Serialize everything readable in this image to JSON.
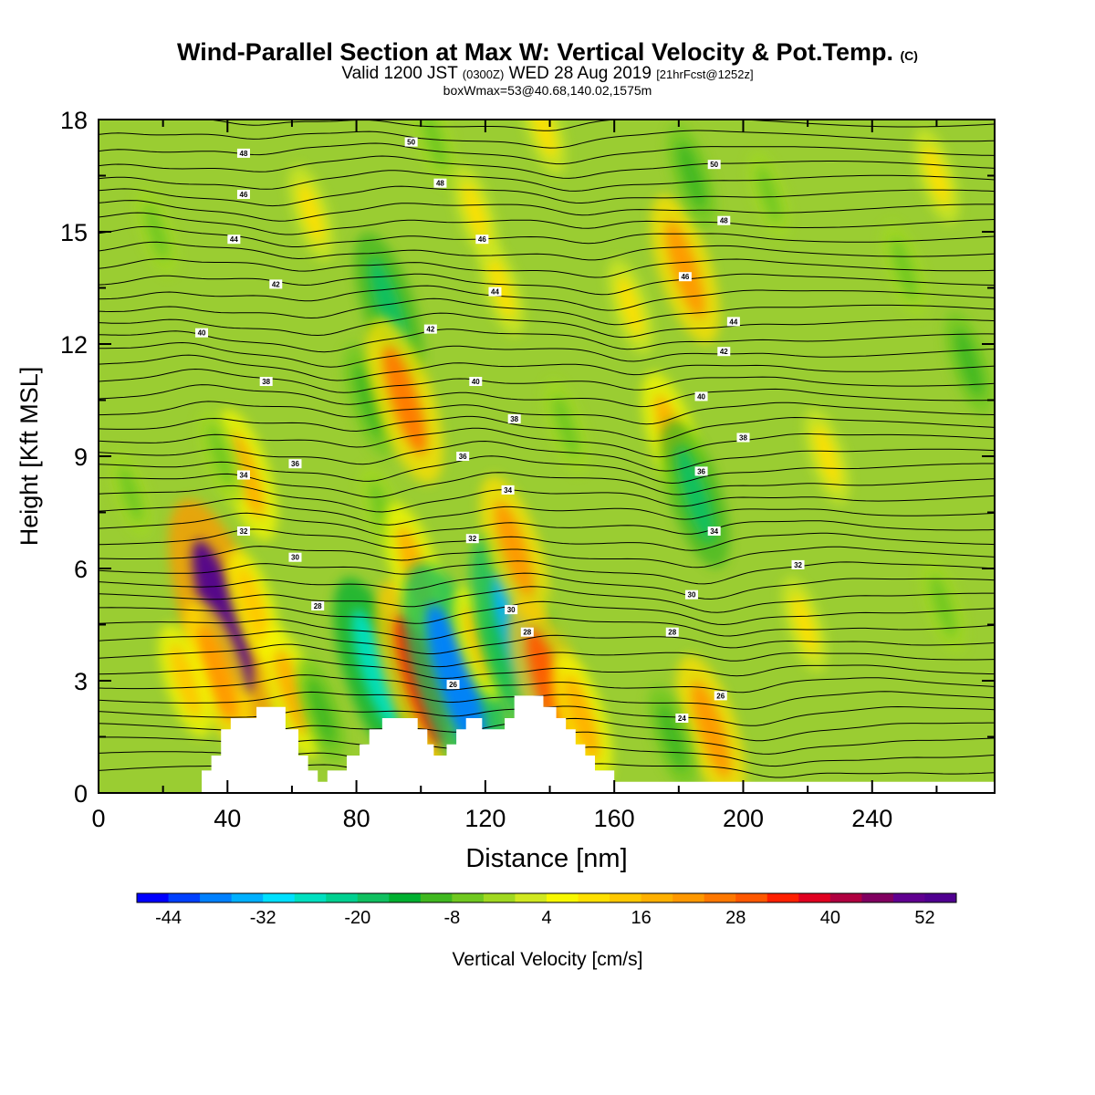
{
  "header": {
    "title": "Wind-Parallel Section at Max W: Vertical Velocity & Pot.Temp.",
    "title_mark": "(C)",
    "valid_prefix": "Valid 1200 JST",
    "valid_utc": "(0300Z)",
    "valid_date": "WED 28 Aug 2019",
    "forecast": "[21hrFcst@1252z]",
    "box_info": "boxWmax=53@40.68,140.02,1575m"
  },
  "colors": {
    "background_field": "#9acd32",
    "terrain": "#ffffff",
    "contour": "#000000"
  },
  "chart_data": {
    "type": "heatmap",
    "xlabel": "Distance [nm]",
    "ylabel": "Height [Kft MSL]",
    "xlim": [
      0,
      278
    ],
    "ylim": [
      0,
      18
    ],
    "x_ticks": [
      0,
      40,
      80,
      120,
      160,
      200,
      240
    ],
    "y_ticks": [
      0,
      3,
      6,
      9,
      12,
      15,
      18
    ],
    "colorbar": {
      "label": "Vertical Velocity [cm/s]",
      "min": -48,
      "max": 56,
      "step": 4,
      "tick_labels": [
        -44,
        -32,
        -20,
        -8,
        4,
        16,
        28,
        40,
        52
      ],
      "colors": [
        "#0000ff",
        "#0040ff",
        "#0080ff",
        "#00b0ff",
        "#00e0ff",
        "#00e0c0",
        "#00d090",
        "#10c060",
        "#00b030",
        "#40b820",
        "#70c820",
        "#a0d820",
        "#d0e820",
        "#f8f800",
        "#ffe000",
        "#ffc800",
        "#ffb000",
        "#ff9800",
        "#ff7800",
        "#ff5800",
        "#ff2000",
        "#e00020",
        "#b00040",
        "#800060",
        "#600090",
        "#500090"
      ]
    },
    "terrain_profile_kft": [
      [
        0,
        0
      ],
      [
        32,
        0
      ],
      [
        32,
        0.6
      ],
      [
        35,
        0.6
      ],
      [
        35,
        1
      ],
      [
        38,
        1
      ],
      [
        38,
        1.7
      ],
      [
        41,
        1.7
      ],
      [
        41,
        2
      ],
      [
        49,
        2
      ],
      [
        49,
        2.3
      ],
      [
        58,
        2.3
      ],
      [
        58,
        1.7
      ],
      [
        62,
        1.7
      ],
      [
        62,
        1
      ],
      [
        65,
        1
      ],
      [
        65,
        0.6
      ],
      [
        68,
        0.6
      ],
      [
        68,
        0.3
      ],
      [
        71,
        0.3
      ],
      [
        71,
        0.6
      ],
      [
        77,
        0.6
      ],
      [
        77,
        1
      ],
      [
        81,
        1
      ],
      [
        81,
        1.3
      ],
      [
        84,
        1.3
      ],
      [
        84,
        1.7
      ],
      [
        88,
        1.7
      ],
      [
        88,
        2
      ],
      [
        99,
        2
      ],
      [
        99,
        1.7
      ],
      [
        102,
        1.7
      ],
      [
        102,
        1.3
      ],
      [
        104,
        1.3
      ],
      [
        104,
        1
      ],
      [
        108,
        1
      ],
      [
        108,
        1.3
      ],
      [
        111,
        1.3
      ],
      [
        111,
        1.7
      ],
      [
        114,
        1.7
      ],
      [
        114,
        2
      ],
      [
        119,
        2
      ],
      [
        119,
        1.7
      ],
      [
        126,
        1.7
      ],
      [
        126,
        2
      ],
      [
        129,
        2
      ],
      [
        129,
        2.6
      ],
      [
        138,
        2.6
      ],
      [
        138,
        2.3
      ],
      [
        142,
        2.3
      ],
      [
        142,
        2
      ],
      [
        145,
        2
      ],
      [
        145,
        1.7
      ],
      [
        148,
        1.7
      ],
      [
        148,
        1.3
      ],
      [
        151,
        1.3
      ],
      [
        151,
        1
      ],
      [
        154,
        1
      ],
      [
        154,
        0.6
      ],
      [
        160,
        0.6
      ],
      [
        160,
        0.3
      ],
      [
        278,
        0.3
      ],
      [
        278,
        0
      ]
    ],
    "w_features": [
      {
        "x": 38.5,
        "y": 4.7,
        "w": 52
      },
      {
        "x": 37,
        "y": 3.2,
        "w": 20
      },
      {
        "x": 27,
        "y": 3.0,
        "w": 12
      },
      {
        "x": 46,
        "y": 8.5,
        "w": 16
      },
      {
        "x": 48,
        "y": 5.0,
        "w": 12
      },
      {
        "x": 38,
        "y": 9.0,
        "w": -8
      },
      {
        "x": 60,
        "y": 2.7,
        "w": 16
      },
      {
        "x": 69,
        "y": 2.2,
        "w": -10
      },
      {
        "x": 86,
        "y": 3.3,
        "w": -28
      },
      {
        "x": 88,
        "y": 7.5,
        "w": -8
      },
      {
        "x": 84,
        "y": 10.5,
        "w": -12
      },
      {
        "x": 90,
        "y": 13.0,
        "w": -20
      },
      {
        "x": 95,
        "y": 10.5,
        "w": 24
      },
      {
        "x": 100,
        "y": 3.0,
        "w": 32
      },
      {
        "x": 98,
        "y": 6.0,
        "w": 16
      },
      {
        "x": 111,
        "y": 3.0,
        "w": -40
      },
      {
        "x": 118,
        "y": 4.0,
        "w": 12
      },
      {
        "x": 125,
        "y": 3.8,
        "w": -10
      },
      {
        "x": 131,
        "y": 4.0,
        "w": -36
      },
      {
        "x": 129,
        "y": 6.5,
        "w": 20
      },
      {
        "x": 140,
        "y": 2.8,
        "w": 28
      },
      {
        "x": 150,
        "y": 2.0,
        "w": 16
      },
      {
        "x": 178,
        "y": 9.5,
        "w": 16
      },
      {
        "x": 182,
        "y": 14.0,
        "w": 20
      },
      {
        "x": 185,
        "y": 8.0,
        "w": -20
      },
      {
        "x": 184,
        "y": 16.5,
        "w": -10
      },
      {
        "x": 190,
        "y": 1.7,
        "w": 20
      },
      {
        "x": 178,
        "y": 1.5,
        "w": -10
      },
      {
        "x": 125,
        "y": 13.5,
        "w": 8
      },
      {
        "x": 165,
        "y": 13.0,
        "w": 8
      },
      {
        "x": 104,
        "y": 17.5,
        "w": -8
      },
      {
        "x": 117,
        "y": 15.5,
        "w": 8
      },
      {
        "x": 260,
        "y": 16.5,
        "w": 8
      },
      {
        "x": 250,
        "y": 14.0,
        "w": -8
      },
      {
        "x": 270,
        "y": 11.5,
        "w": -10
      },
      {
        "x": 262,
        "y": 5.0,
        "w": -8
      },
      {
        "x": 226,
        "y": 9.0,
        "w": 8
      },
      {
        "x": 219,
        "y": 4.5,
        "w": 8
      },
      {
        "x": 208,
        "y": 16.0,
        "w": -6
      },
      {
        "x": 138,
        "y": 17.8,
        "w": 8
      },
      {
        "x": 66,
        "y": 15.5,
        "w": 8
      },
      {
        "x": 18,
        "y": 15.0,
        "w": -6
      },
      {
        "x": 145,
        "y": 9.8,
        "w": -8
      },
      {
        "x": 10,
        "y": 8.0,
        "w": -6
      }
    ],
    "theta_labels": [
      {
        "label": "28",
        "x": 68,
        "y": 5.0
      },
      {
        "label": "30",
        "x": 61,
        "y": 6.3
      },
      {
        "label": "32",
        "x": 45,
        "y": 7.0
      },
      {
        "label": "34",
        "x": 45,
        "y": 8.5
      },
      {
        "label": "36",
        "x": 61,
        "y": 8.8
      },
      {
        "label": "38",
        "x": 52,
        "y": 11.0
      },
      {
        "label": "40",
        "x": 32,
        "y": 12.3
      },
      {
        "label": "42",
        "x": 55,
        "y": 13.6
      },
      {
        "label": "44",
        "x": 42,
        "y": 14.8
      },
      {
        "label": "46",
        "x": 45,
        "y": 16.0
      },
      {
        "label": "48",
        "x": 45,
        "y": 17.1
      },
      {
        "label": "50",
        "x": 97,
        "y": 17.4
      },
      {
        "label": "48",
        "x": 106,
        "y": 16.3
      },
      {
        "label": "46",
        "x": 119,
        "y": 14.8
      },
      {
        "label": "44",
        "x": 123,
        "y": 13.4
      },
      {
        "label": "42",
        "x": 103,
        "y": 12.4
      },
      {
        "label": "40",
        "x": 117,
        "y": 11.0
      },
      {
        "label": "38",
        "x": 129,
        "y": 10.0
      },
      {
        "label": "36",
        "x": 113,
        "y": 9.0
      },
      {
        "label": "34",
        "x": 127,
        "y": 8.1
      },
      {
        "label": "32",
        "x": 116,
        "y": 6.8
      },
      {
        "label": "30",
        "x": 128,
        "y": 4.9
      },
      {
        "label": "28",
        "x": 133,
        "y": 4.3
      },
      {
        "label": "26",
        "x": 110,
        "y": 2.9
      },
      {
        "label": "50",
        "x": 191,
        "y": 16.8
      },
      {
        "label": "48",
        "x": 194,
        "y": 15.3
      },
      {
        "label": "46",
        "x": 182,
        "y": 13.8
      },
      {
        "label": "44",
        "x": 197,
        "y": 12.6
      },
      {
        "label": "42",
        "x": 194,
        "y": 11.8
      },
      {
        "label": "40",
        "x": 187,
        "y": 10.6
      },
      {
        "label": "38",
        "x": 200,
        "y": 9.5
      },
      {
        "label": "36",
        "x": 187,
        "y": 8.6
      },
      {
        "label": "34",
        "x": 191,
        "y": 7.0
      },
      {
        "label": "32",
        "x": 217,
        "y": 6.1
      },
      {
        "label": "30",
        "x": 184,
        "y": 5.3
      },
      {
        "label": "28",
        "x": 178,
        "y": 4.3
      },
      {
        "label": "26",
        "x": 193,
        "y": 2.6
      },
      {
        "label": "24",
        "x": 181,
        "y": 2.0
      }
    ]
  }
}
